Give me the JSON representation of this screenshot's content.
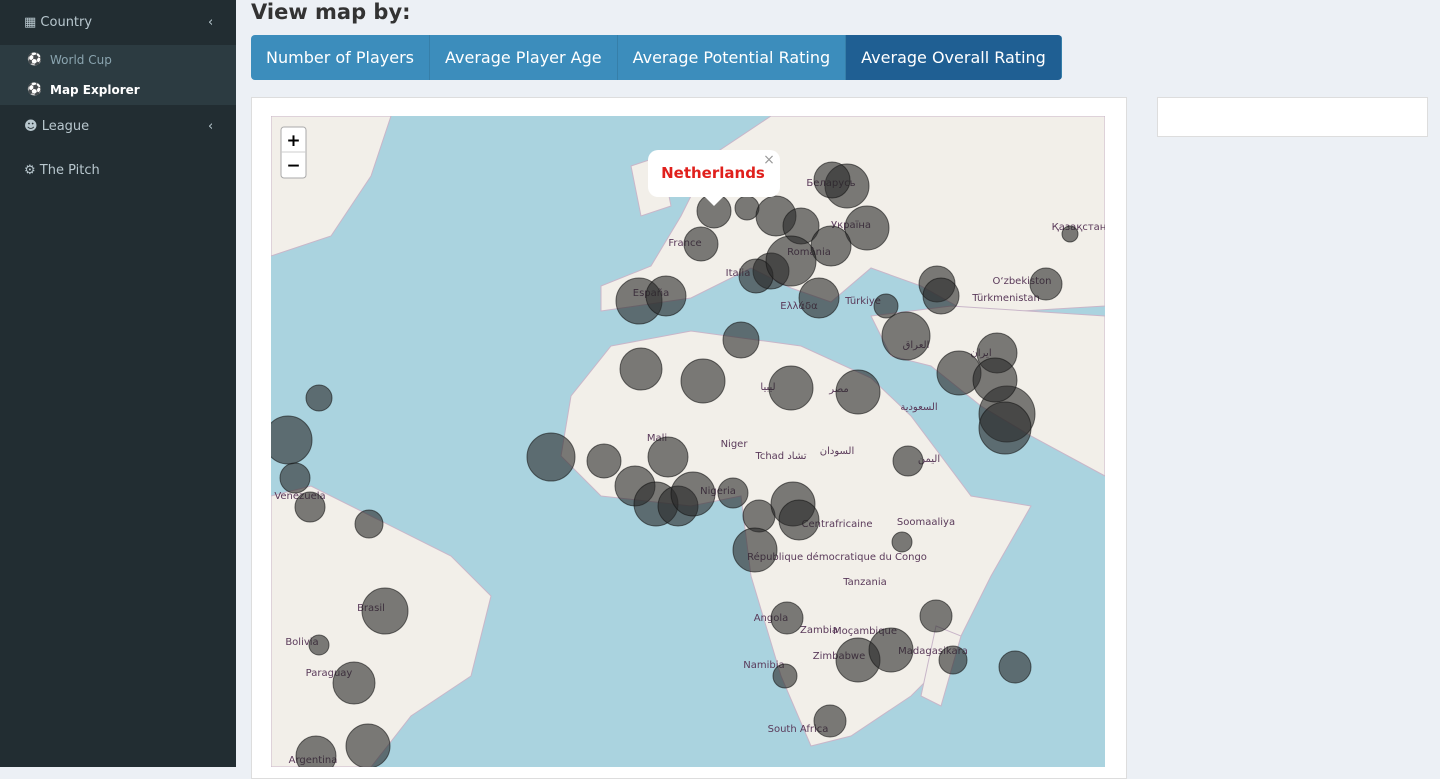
{
  "sidebar": {
    "items": [
      {
        "label": "Country",
        "children": [
          "World Cup",
          "Map Explorer"
        ]
      },
      {
        "label": "League"
      },
      {
        "label": "The Pitch"
      }
    ]
  },
  "main": {
    "heading": "View map by:",
    "buttons": [
      "Number of Players",
      "Average Player Age",
      "Average Potential Rating",
      "Average Overall Rating"
    ],
    "map": {
      "zoom_in": "+",
      "zoom_out": "−",
      "popup": "Netherlands",
      "popup_close": "×",
      "labels": [
        "France",
        "España",
        "Italia",
        "România",
        "Беларусь",
        "Україна",
        "Türkiye",
        "Ελλάδα",
        "Mali",
        "Niger",
        "Tchad تشاد",
        "Nigeria",
        "Tanzania",
        "Angola",
        "Zambia",
        "Moçambique",
        "Zimbabwe",
        "Namibia",
        "South Africa",
        "Madagasikara",
        "Brasil",
        "Bolivia",
        "Paraguay",
        "Argentina",
        "Venezuela",
        "Қазақстан",
        "Türkmenistan",
        "O‘zbekiston",
        "Soomaaliya",
        "République démocratique du Congo",
        "Centrafricaine",
        "مصر",
        "ليبيا",
        "السعودية",
        "اليمن",
        "ایران",
        "العراق",
        "السودان"
      ]
    }
  }
}
